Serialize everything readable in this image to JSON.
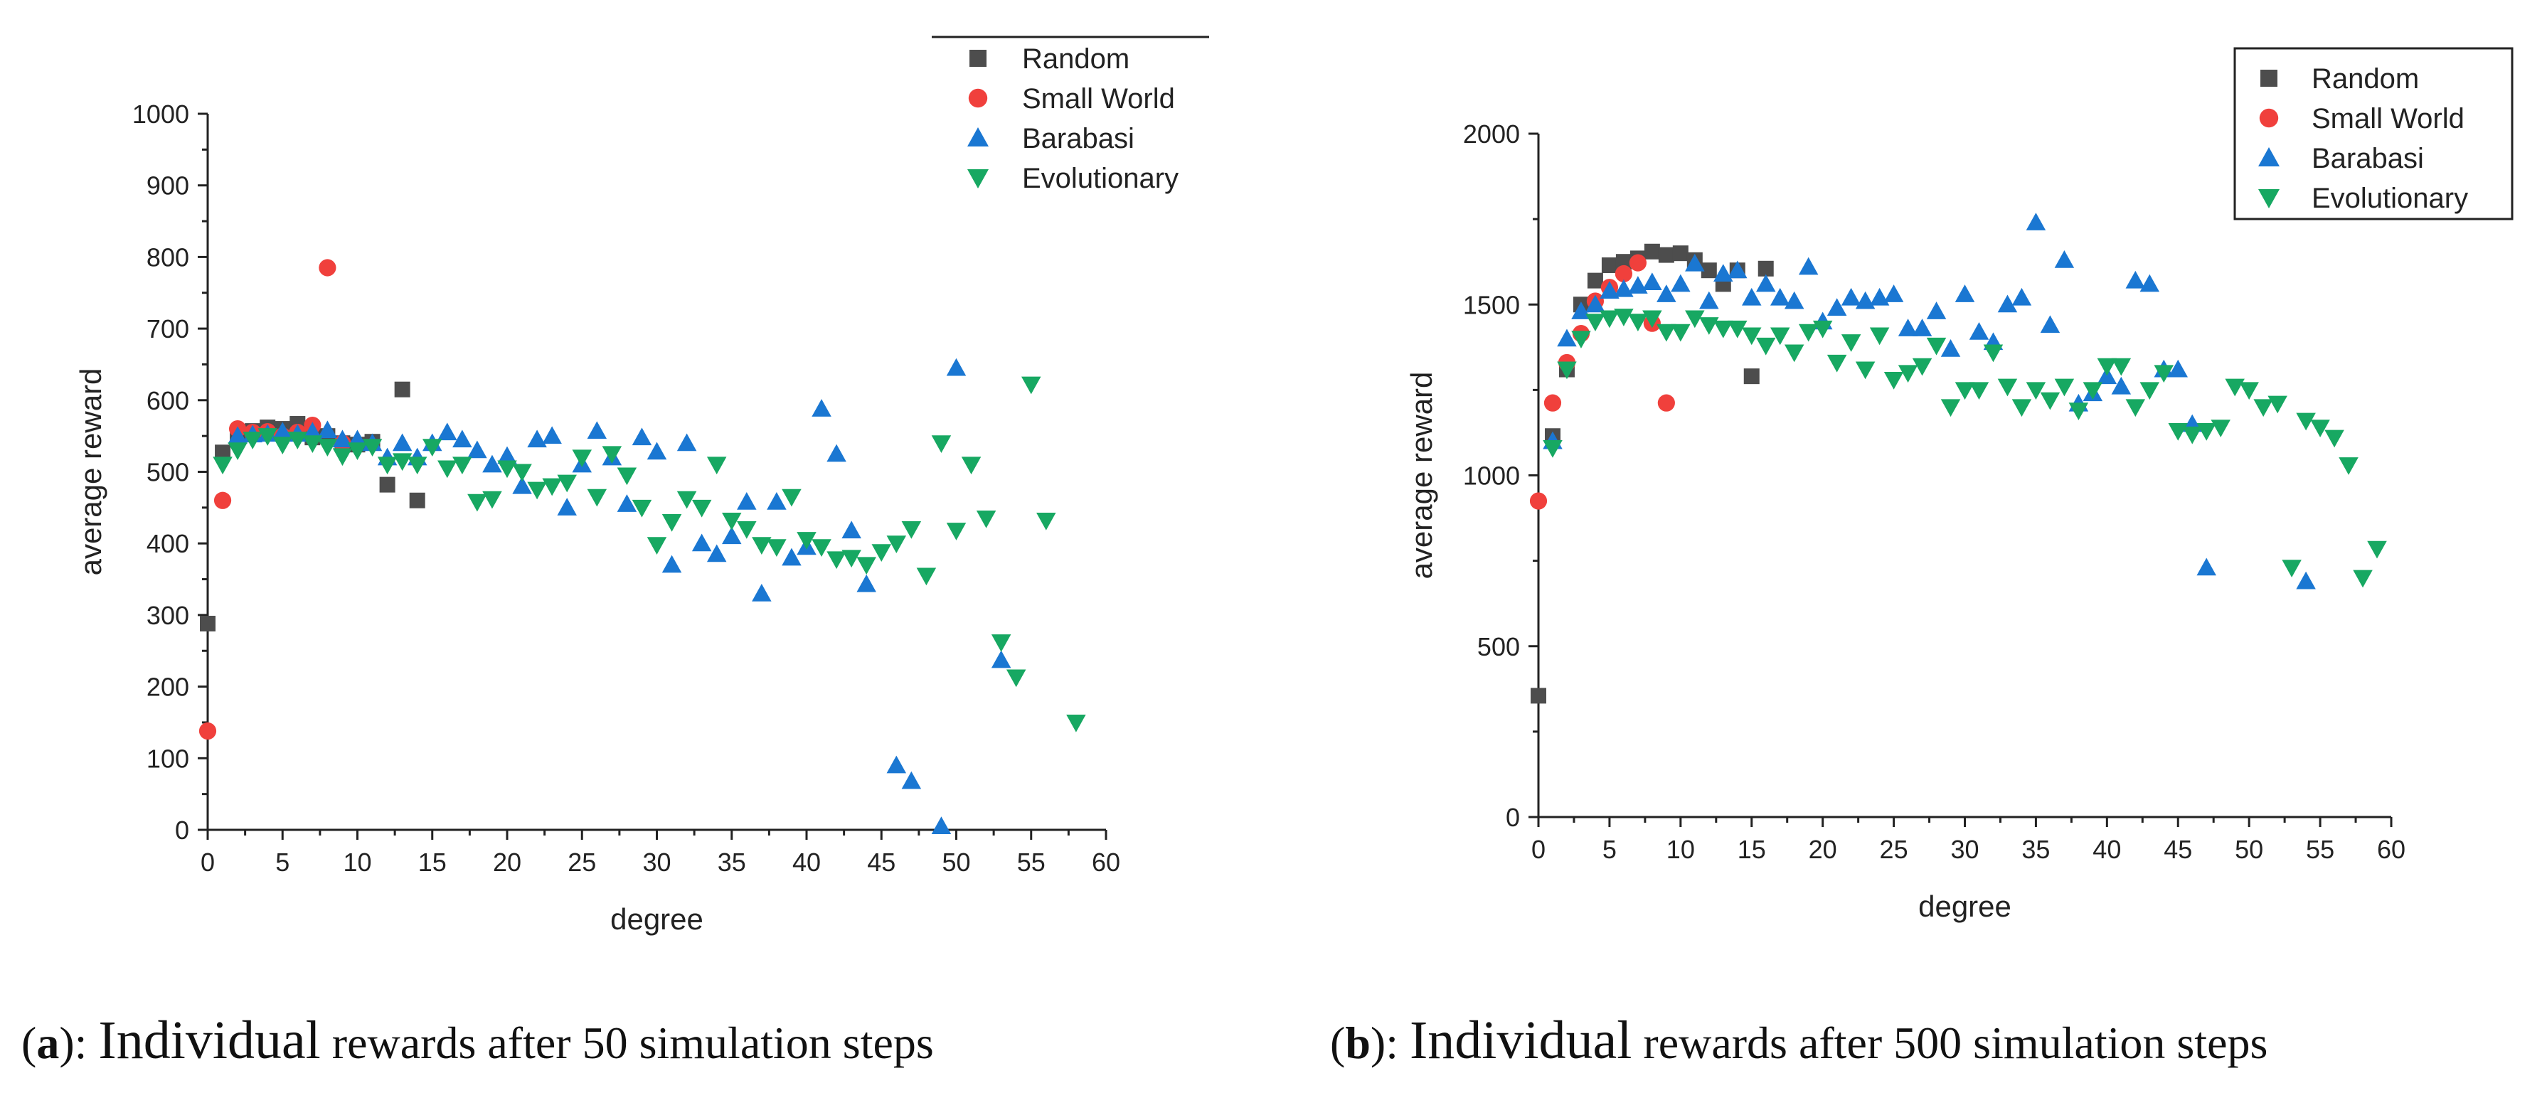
{
  "captions": [
    {
      "open": "(",
      "letter": "a",
      "close": "):",
      "word": "Individual",
      "rest": "rewards after 50 simulation steps"
    },
    {
      "open": "(",
      "letter": "b",
      "close": "):",
      "word": "Individual",
      "rest": "rewards after 500 simulation steps"
    }
  ],
  "colors": {
    "Random": "#4d4d4d",
    "Small World": "#f0403c",
    "Barabasi": "#1a77d2",
    "Evolutionary": "#17a862"
  },
  "chart_data": [
    {
      "type": "scatter",
      "title": "(a): Individual rewards after 50 simulation steps",
      "xlabel": "degree",
      "ylabel": "average reward",
      "xlim": [
        0,
        60
      ],
      "ylim": [
        0,
        1000
      ],
      "xticks": [
        0,
        5,
        10,
        15,
        20,
        25,
        30,
        35,
        40,
        45,
        50,
        55,
        60
      ],
      "yticks": [
        0,
        100,
        200,
        300,
        400,
        500,
        600,
        700,
        800,
        900,
        1000
      ],
      "legend_position": "top-right",
      "series": [
        {
          "name": "Random",
          "marker": "square",
          "points": [
            [
              0,
              288
            ],
            [
              1,
              527
            ],
            [
              2,
              550
            ],
            [
              3,
              557
            ],
            [
              4,
              562
            ],
            [
              5,
              560
            ],
            [
              6,
              567
            ],
            [
              7,
              548
            ],
            [
              8,
              550
            ],
            [
              9,
              540
            ],
            [
              10,
              538
            ],
            [
              11,
              542
            ],
            [
              12,
              482
            ],
            [
              13,
              615
            ],
            [
              14,
              460
            ]
          ]
        },
        {
          "name": "Small World",
          "marker": "circle",
          "points": [
            [
              0,
              138
            ],
            [
              1,
              460
            ],
            [
              2,
              560
            ],
            [
              3,
              555
            ],
            [
              4,
              556
            ],
            [
              5,
              550
            ],
            [
              6,
              555
            ],
            [
              7,
              565
            ],
            [
              8,
              785
            ],
            [
              9,
              540
            ]
          ]
        },
        {
          "name": "Barabasi",
          "marker": "triangle-up",
          "points": [
            [
              2,
              550
            ],
            [
              3,
              552
            ],
            [
              4,
              553
            ],
            [
              5,
              556
            ],
            [
              6,
              553
            ],
            [
              7,
              556
            ],
            [
              8,
              558
            ],
            [
              9,
              545
            ],
            [
              10,
              545
            ],
            [
              11,
              540
            ],
            [
              12,
              520
            ],
            [
              13,
              540
            ],
            [
              14,
              520
            ],
            [
              15,
              540
            ],
            [
              16,
              555
            ],
            [
              17,
              545
            ],
            [
              18,
              530
            ],
            [
              19,
              510
            ],
            [
              20,
              522
            ],
            [
              21,
              480
            ],
            [
              22,
              545
            ],
            [
              23,
              550
            ],
            [
              24,
              450
            ],
            [
              25,
              510
            ],
            [
              26,
              557
            ],
            [
              27,
              520
            ],
            [
              28,
              455
            ],
            [
              29,
              548
            ],
            [
              30,
              528
            ],
            [
              31,
              370
            ],
            [
              32,
              540
            ],
            [
              33,
              400
            ],
            [
              34,
              385
            ],
            [
              35,
              410
            ],
            [
              36,
              458
            ],
            [
              37,
              330
            ],
            [
              38,
              458
            ],
            [
              39,
              380
            ],
            [
              40,
              395
            ],
            [
              41,
              588
            ],
            [
              42,
              525
            ],
            [
              43,
              418
            ],
            [
              44,
              343
            ],
            [
              46,
              90
            ],
            [
              47,
              68
            ],
            [
              49,
              5
            ],
            [
              50,
              645
            ],
            [
              53,
              237
            ]
          ]
        },
        {
          "name": "Evolutionary",
          "marker": "triangle-down",
          "points": [
            [
              1,
              510
            ],
            [
              2,
              530
            ],
            [
              3,
              545
            ],
            [
              4,
              550
            ],
            [
              5,
              538
            ],
            [
              6,
              545
            ],
            [
              7,
              540
            ],
            [
              8,
              535
            ],
            [
              9,
              522
            ],
            [
              10,
              530
            ],
            [
              11,
              535
            ],
            [
              12,
              510
            ],
            [
              13,
              515
            ],
            [
              14,
              510
            ],
            [
              15,
              535
            ],
            [
              16,
              505
            ],
            [
              17,
              510
            ],
            [
              18,
              458
            ],
            [
              19,
              462
            ],
            [
              20,
              505
            ],
            [
              21,
              500
            ],
            [
              22,
              475
            ],
            [
              23,
              480
            ],
            [
              24,
              485
            ],
            [
              25,
              520
            ],
            [
              26,
              465
            ],
            [
              27,
              525
            ],
            [
              28,
              495
            ],
            [
              29,
              450
            ],
            [
              30,
              398
            ],
            [
              31,
              430
            ],
            [
              32,
              462
            ],
            [
              33,
              450
            ],
            [
              34,
              510
            ],
            [
              35,
              432
            ],
            [
              36,
              420
            ],
            [
              37,
              398
            ],
            [
              38,
              395
            ],
            [
              39,
              465
            ],
            [
              40,
              405
            ],
            [
              41,
              395
            ],
            [
              42,
              378
            ],
            [
              43,
              380
            ],
            [
              44,
              370
            ],
            [
              45,
              388
            ],
            [
              46,
              400
            ],
            [
              47,
              420
            ],
            [
              48,
              355
            ],
            [
              49,
              540
            ],
            [
              50,
              418
            ],
            [
              51,
              510
            ],
            [
              52,
              435
            ],
            [
              53,
              262
            ],
            [
              54,
              213
            ],
            [
              55,
              622
            ],
            [
              56,
              432
            ],
            [
              58,
              150
            ]
          ]
        }
      ]
    },
    {
      "type": "scatter",
      "title": "(b): Individual rewards after 500 simulation steps",
      "xlabel": "degree",
      "ylabel": "average reward",
      "xlim": [
        0,
        60
      ],
      "ylim": [
        0,
        2000
      ],
      "xticks": [
        0,
        5,
        10,
        15,
        20,
        25,
        30,
        35,
        40,
        45,
        50,
        55,
        60
      ],
      "yticks": [
        0,
        500,
        1000,
        1500,
        2000
      ],
      "legend_position": "top-right",
      "series": [
        {
          "name": "Random",
          "marker": "square",
          "points": [
            [
              0,
              355
            ],
            [
              1,
              1115
            ],
            [
              2,
              1310
            ],
            [
              3,
              1500
            ],
            [
              4,
              1570
            ],
            [
              5,
              1615
            ],
            [
              6,
              1625
            ],
            [
              7,
              1635
            ],
            [
              8,
              1655
            ],
            [
              9,
              1645
            ],
            [
              10,
              1650
            ],
            [
              11,
              1630
            ],
            [
              12,
              1600
            ],
            [
              13,
              1560
            ],
            [
              14,
              1600
            ],
            [
              15,
              1290
            ],
            [
              16,
              1605
            ]
          ]
        },
        {
          "name": "Small World",
          "marker": "circle",
          "points": [
            [
              0,
              925
            ],
            [
              1,
              1212
            ],
            [
              2,
              1330
            ],
            [
              3,
              1415
            ],
            [
              4,
              1510
            ],
            [
              5,
              1550
            ],
            [
              6,
              1590
            ],
            [
              7,
              1622
            ],
            [
              8,
              1445
            ],
            [
              9,
              1212
            ]
          ]
        },
        {
          "name": "Barabasi",
          "marker": "triangle-up",
          "points": [
            [
              1,
              1100
            ],
            [
              2,
              1400
            ],
            [
              3,
              1480
            ],
            [
              4,
              1500
            ],
            [
              5,
              1540
            ],
            [
              6,
              1545
            ],
            [
              7,
              1555
            ],
            [
              8,
              1565
            ],
            [
              9,
              1530
            ],
            [
              10,
              1560
            ],
            [
              11,
              1620
            ],
            [
              12,
              1510
            ],
            [
              13,
              1590
            ],
            [
              14,
              1600
            ],
            [
              15,
              1520
            ],
            [
              16,
              1560
            ],
            [
              17,
              1520
            ],
            [
              18,
              1510
            ],
            [
              19,
              1610
            ],
            [
              20,
              1450
            ],
            [
              21,
              1490
            ],
            [
              22,
              1520
            ],
            [
              23,
              1510
            ],
            [
              24,
              1520
            ],
            [
              25,
              1530
            ],
            [
              26,
              1430
            ],
            [
              27,
              1430
            ],
            [
              28,
              1480
            ],
            [
              29,
              1370
            ],
            [
              30,
              1530
            ],
            [
              31,
              1420
            ],
            [
              32,
              1390
            ],
            [
              33,
              1500
            ],
            [
              34,
              1520
            ],
            [
              35,
              1740
            ],
            [
              36,
              1440
            ],
            [
              37,
              1630
            ],
            [
              38,
              1210
            ],
            [
              39,
              1240
            ],
            [
              40,
              1290
            ],
            [
              41,
              1260
            ],
            [
              42,
              1570
            ],
            [
              43,
              1560
            ],
            [
              44,
              1310
            ],
            [
              45,
              1310
            ],
            [
              46,
              1150
            ],
            [
              47,
              730
            ],
            [
              54,
              690
            ]
          ]
        },
        {
          "name": "Evolutionary",
          "marker": "triangle-down",
          "points": [
            [
              1,
              1080
            ],
            [
              2,
              1310
            ],
            [
              3,
              1400
            ],
            [
              4,
              1450
            ],
            [
              5,
              1460
            ],
            [
              6,
              1465
            ],
            [
              7,
              1450
            ],
            [
              8,
              1460
            ],
            [
              9,
              1420
            ],
            [
              10,
              1420
            ],
            [
              11,
              1460
            ],
            [
              12,
              1440
            ],
            [
              13,
              1430
            ],
            [
              14,
              1430
            ],
            [
              15,
              1410
            ],
            [
              16,
              1380
            ],
            [
              17,
              1410
            ],
            [
              18,
              1360
            ],
            [
              19,
              1420
            ],
            [
              20,
              1430
            ],
            [
              21,
              1330
            ],
            [
              22,
              1390
            ],
            [
              23,
              1310
            ],
            [
              24,
              1410
            ],
            [
              25,
              1280
            ],
            [
              26,
              1300
            ],
            [
              27,
              1320
            ],
            [
              28,
              1380
            ],
            [
              29,
              1200
            ],
            [
              30,
              1250
            ],
            [
              31,
              1250
            ],
            [
              32,
              1360
            ],
            [
              33,
              1260
            ],
            [
              34,
              1200
            ],
            [
              35,
              1250
            ],
            [
              36,
              1220
            ],
            [
              37,
              1260
            ],
            [
              38,
              1190
            ],
            [
              39,
              1250
            ],
            [
              40,
              1320
            ],
            [
              41,
              1320
            ],
            [
              42,
              1200
            ],
            [
              43,
              1250
            ],
            [
              44,
              1300
            ],
            [
              45,
              1130
            ],
            [
              46,
              1120
            ],
            [
              47,
              1130
            ],
            [
              48,
              1140
            ],
            [
              49,
              1260
            ],
            [
              50,
              1250
            ],
            [
              51,
              1200
            ],
            [
              52,
              1210
            ],
            [
              53,
              730
            ],
            [
              54,
              1160
            ],
            [
              55,
              1140
            ],
            [
              56,
              1110
            ],
            [
              57,
              1030
            ],
            [
              58,
              700
            ],
            [
              59,
              785
            ]
          ]
        }
      ]
    }
  ]
}
